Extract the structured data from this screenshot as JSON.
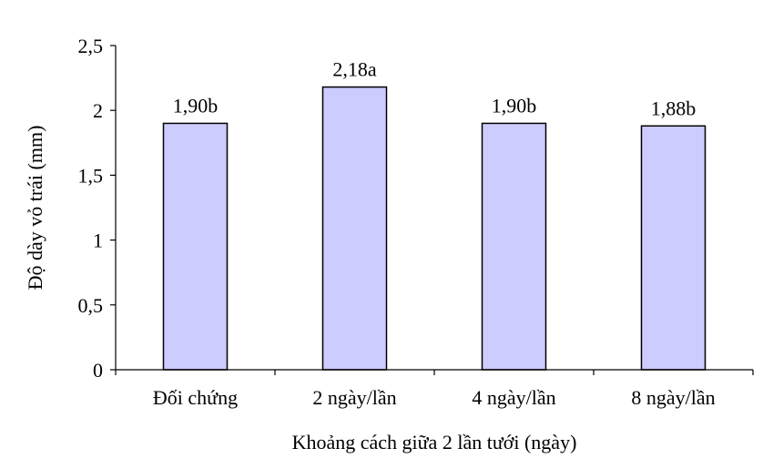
{
  "chart_data": {
    "type": "bar",
    "categories": [
      "Đối chứng",
      "2 ngày/lần",
      "4 ngày/lần",
      "8 ngày/lần"
    ],
    "values": [
      1.9,
      2.18,
      1.9,
      1.88
    ],
    "data_labels": [
      "1,90b",
      "2,18a",
      "1,90b",
      "1,88b"
    ],
    "title": "",
    "xlabel": "Khoảng cách giữa 2 lần tưới (ngày)",
    "ylabel": "Độ dày vỏ trái (mm)",
    "ylim": [
      0,
      2.5
    ],
    "yticks": [
      0,
      0.5,
      1,
      1.5,
      2,
      2.5
    ],
    "ytick_labels": [
      "0",
      "0,5",
      "1",
      "1,5",
      "2",
      "2,5"
    ],
    "grid": false,
    "legend": "none",
    "bar_color": "#ccccff",
    "bar_edge_color": "#000000"
  }
}
